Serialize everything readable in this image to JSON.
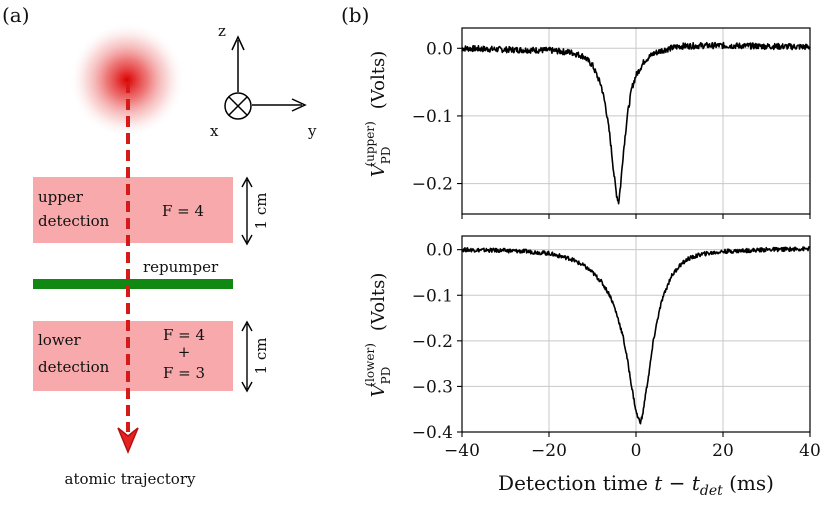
{
  "panel_a": {
    "label": "(a)",
    "axes": {
      "z": "z",
      "y": "y",
      "x": "x"
    },
    "upper_box": {
      "line1": "upper",
      "line2": "detection",
      "level": "F = 4",
      "size": "1 cm"
    },
    "repumper": "repumper",
    "lower_box": {
      "line1": "lower",
      "line2": "detection",
      "level1": "F = 4",
      "plus": "+",
      "level2": "F = 3",
      "size": "1 cm"
    },
    "trajectory": "atomic trajectory",
    "colors": {
      "box": "#f7a9ab",
      "repumper": "#118811",
      "arrow": "#d51a1a",
      "cloud": "#dd0000"
    }
  },
  "panel_b": {
    "label": "(b)",
    "xlabel_main": "Detection time",
    "xlabel_var": "t",
    "xlabel_minus": " − ",
    "xlabel_sub_var": "t",
    "xlabel_sub": "det",
    "xlabel_unit": " (ms)",
    "ylabel_main": "V",
    "ylabel_sub": "PD",
    "ylabel_upper": "(upper)",
    "ylabel_lower": "(lower)",
    "ylabel_unit": "(Volts)"
  },
  "chart_data": [
    {
      "type": "line",
      "name": "upper",
      "xlim": [
        -40,
        40
      ],
      "ylim": [
        -0.245,
        0.03
      ],
      "yticks": [
        0.0,
        -0.1,
        -0.2
      ],
      "ytick_labels": [
        "0.0",
        "−0.1",
        "−0.2"
      ],
      "xticks": [
        -40,
        -20,
        0,
        20,
        40
      ],
      "grid": true,
      "line_color": "#000000",
      "x": [
        -40,
        -30,
        -20,
        -15,
        -12,
        -10,
        -8,
        -7,
        -6,
        -5,
        -4.5,
        -4,
        -3.5,
        -3,
        -2,
        -1,
        0,
        2,
        4,
        6,
        8,
        10,
        15,
        20,
        30,
        40
      ],
      "y": [
        0.0,
        -0.002,
        -0.003,
        -0.006,
        -0.012,
        -0.025,
        -0.055,
        -0.085,
        -0.13,
        -0.19,
        -0.215,
        -0.228,
        -0.2,
        -0.16,
        -0.1,
        -0.06,
        -0.04,
        -0.018,
        -0.008,
        -0.003,
        0.0,
        0.003,
        0.004,
        0.004,
        0.003,
        0.002
      ]
    },
    {
      "type": "line",
      "name": "lower",
      "xlim": [
        -40,
        40
      ],
      "ylim": [
        -0.4,
        0.03
      ],
      "yticks": [
        0.0,
        -0.1,
        -0.2,
        -0.3,
        -0.4
      ],
      "ytick_labels": [
        "0.0",
        "−0.1",
        "−0.2",
        "−0.3",
        "−0.4"
      ],
      "xticks": [
        -40,
        -20,
        0,
        20,
        40
      ],
      "xtick_labels": [
        "−40",
        "−20",
        "0",
        "20",
        "40"
      ],
      "grid": true,
      "line_color": "#000000",
      "x": [
        -40,
        -30,
        -25,
        -20,
        -15,
        -12,
        -10,
        -8,
        -6,
        -5,
        -4,
        -3,
        -2,
        -1,
        0,
        0.5,
        1,
        1.5,
        2,
        3,
        4,
        5,
        6,
        8,
        10,
        12,
        15,
        20,
        25,
        30,
        40
      ],
      "y": [
        0.0,
        -0.002,
        -0.004,
        -0.008,
        -0.02,
        -0.035,
        -0.05,
        -0.07,
        -0.1,
        -0.125,
        -0.155,
        -0.19,
        -0.24,
        -0.3,
        -0.355,
        -0.37,
        -0.378,
        -0.365,
        -0.33,
        -0.27,
        -0.2,
        -0.15,
        -0.11,
        -0.06,
        -0.035,
        -0.02,
        -0.01,
        -0.004,
        -0.002,
        0.0,
        0.002
      ]
    }
  ]
}
